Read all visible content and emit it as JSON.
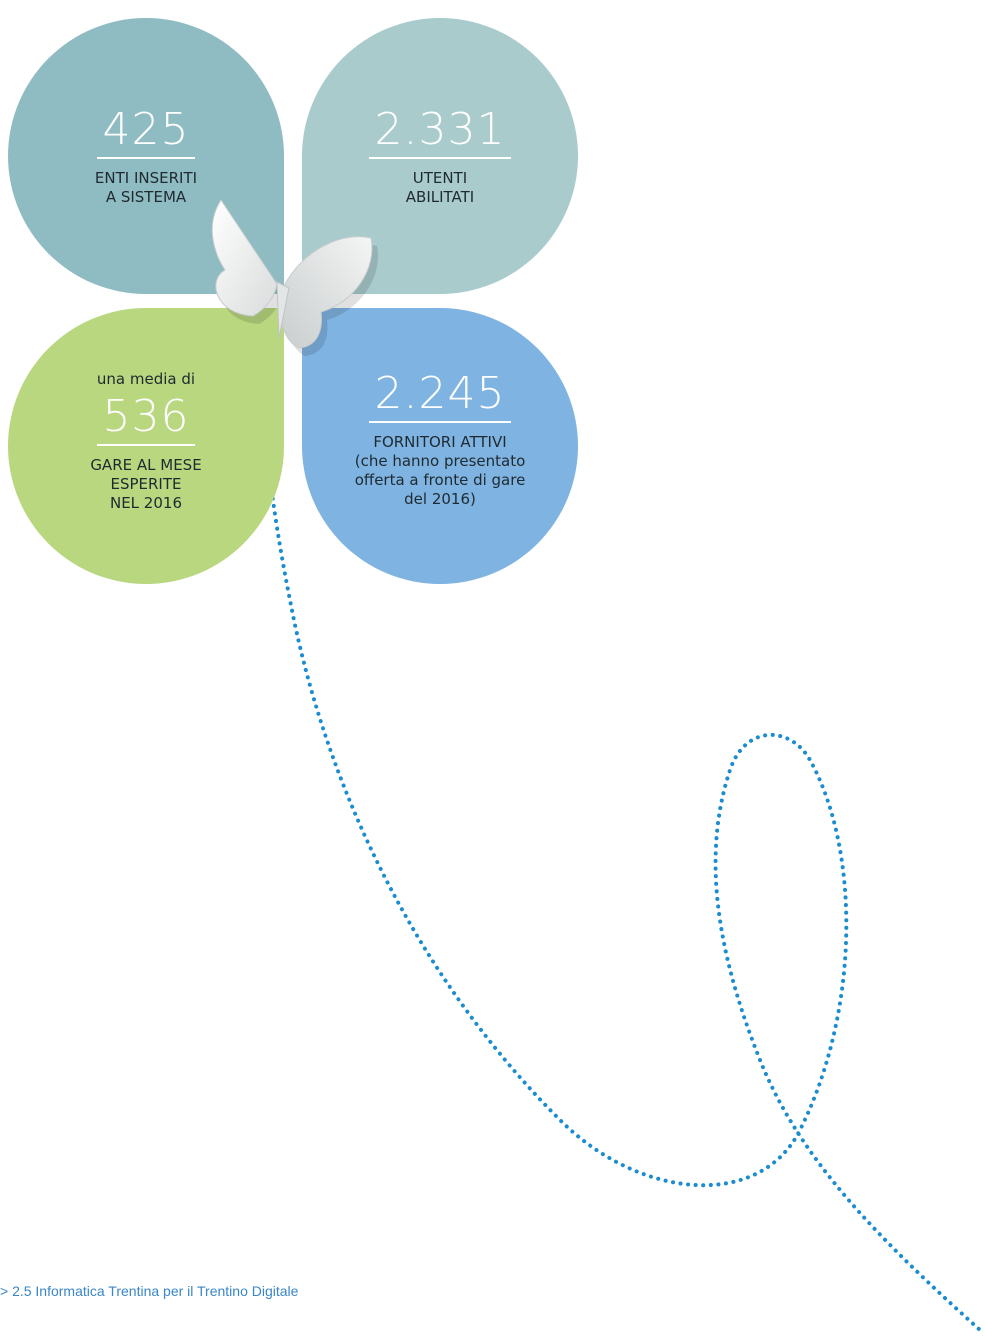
{
  "stats": [
    {
      "number": "425",
      "caption": "ENTI INSERITI\nA SISTEMA"
    },
    {
      "number": "2.331",
      "caption": "UTENTI\nABILITATI"
    },
    {
      "intro": "una media di",
      "number": "536",
      "caption": "GARE AL MESE\nESPERITE\nNEL 2016"
    },
    {
      "number": "2.245",
      "caption": "FORNITORI ATTIVI\n(che hanno presentato\nofferta a fronte di gare\ndel 2016)"
    }
  ],
  "colors": {
    "petal_top_left": "#8fbcc2",
    "petal_top_right": "#a9cbcc",
    "petal_bottom_left": "#b8d77f",
    "petal_bottom_right": "#7fb3e1",
    "dotted_line": "#1a8ccf",
    "footer_text": "#3a86c8"
  },
  "decorations": {
    "butterfly_icon": "butterfly-icon",
    "dotted_trail": "dotted-flight-path"
  },
  "footer": {
    "breadcrumb": "> 2.5 Informatica Trentina per il Trentino Digitale"
  }
}
